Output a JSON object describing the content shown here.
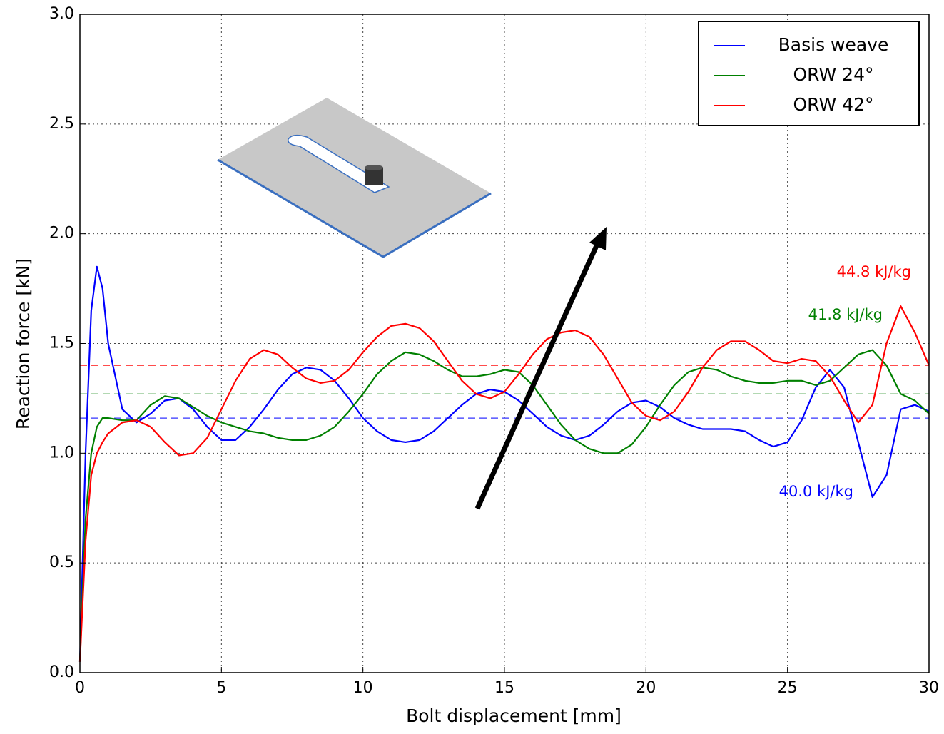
{
  "chart_data": {
    "type": "line",
    "xlabel": "Bolt displacement [mm]",
    "ylabel": "Reaction force [kN]",
    "xlim": [
      0,
      30
    ],
    "ylim": [
      0,
      3.0
    ],
    "xticks": [
      0,
      5,
      10,
      15,
      20,
      25,
      30
    ],
    "yticks": [
      {
        "value": 0,
        "label": "0.0"
      },
      0.5,
      {
        "value": 1,
        "label": "1.0"
      },
      1.5,
      {
        "value": 2,
        "label": "2.0"
      },
      2.5,
      {
        "value": 3,
        "label": "3.0"
      }
    ],
    "grid": true,
    "legend": "upper right",
    "x": [
      0,
      0.2,
      0.4,
      0.6,
      0.8,
      1.0,
      1.5,
      2.0,
      2.5,
      3.0,
      3.5,
      4.0,
      4.5,
      5.0,
      5.5,
      6.0,
      6.5,
      7.0,
      7.5,
      8.0,
      8.5,
      9.0,
      9.5,
      10.0,
      10.5,
      11.0,
      11.5,
      12.0,
      12.5,
      13.0,
      13.5,
      14.0,
      14.5,
      15.0,
      15.5,
      16.0,
      16.5,
      17.0,
      17.5,
      18.0,
      18.5,
      19.0,
      19.5,
      20.0,
      20.5,
      21.0,
      21.5,
      22.0,
      22.5,
      23.0,
      23.5,
      24.0,
      24.5,
      25.0,
      25.5,
      26.0,
      26.5,
      27.0,
      27.5,
      28.0,
      28.5,
      29.0,
      29.5,
      30.0
    ],
    "series": [
      {
        "name": "Basis weave",
        "color": "#0000ff",
        "values": [
          0.05,
          1.0,
          1.65,
          1.85,
          1.75,
          1.5,
          1.2,
          1.14,
          1.18,
          1.24,
          1.25,
          1.2,
          1.12,
          1.06,
          1.06,
          1.12,
          1.2,
          1.29,
          1.36,
          1.39,
          1.38,
          1.33,
          1.25,
          1.16,
          1.1,
          1.06,
          1.05,
          1.06,
          1.1,
          1.16,
          1.22,
          1.27,
          1.29,
          1.28,
          1.24,
          1.18,
          1.12,
          1.08,
          1.06,
          1.08,
          1.13,
          1.19,
          1.23,
          1.24,
          1.21,
          1.16,
          1.13,
          1.11,
          1.11,
          1.11,
          1.1,
          1.06,
          1.03,
          1.05,
          1.15,
          1.3,
          1.38,
          1.3,
          1.05,
          0.8,
          0.9,
          1.2,
          1.22,
          1.19
        ]
      },
      {
        "name": "ORW 24°",
        "color": "#008000",
        "values": [
          0.05,
          0.7,
          1.0,
          1.12,
          1.16,
          1.16,
          1.15,
          1.15,
          1.22,
          1.26,
          1.25,
          1.21,
          1.17,
          1.14,
          1.12,
          1.1,
          1.09,
          1.07,
          1.06,
          1.06,
          1.08,
          1.12,
          1.19,
          1.27,
          1.36,
          1.42,
          1.46,
          1.45,
          1.42,
          1.38,
          1.35,
          1.35,
          1.36,
          1.38,
          1.37,
          1.31,
          1.22,
          1.13,
          1.06,
          1.02,
          1.0,
          1.0,
          1.04,
          1.12,
          1.22,
          1.31,
          1.37,
          1.39,
          1.38,
          1.35,
          1.33,
          1.32,
          1.32,
          1.33,
          1.33,
          1.31,
          1.33,
          1.39,
          1.45,
          1.47,
          1.4,
          1.27,
          1.24,
          1.18
        ]
      },
      {
        "name": "ORW 42°",
        "color": "#ff0000",
        "values": [
          0.05,
          0.6,
          0.9,
          1.0,
          1.05,
          1.09,
          1.14,
          1.15,
          1.12,
          1.05,
          0.99,
          1.0,
          1.07,
          1.2,
          1.33,
          1.43,
          1.47,
          1.45,
          1.39,
          1.34,
          1.32,
          1.33,
          1.38,
          1.46,
          1.53,
          1.58,
          1.59,
          1.57,
          1.51,
          1.42,
          1.33,
          1.27,
          1.25,
          1.28,
          1.36,
          1.45,
          1.52,
          1.55,
          1.56,
          1.53,
          1.45,
          1.34,
          1.23,
          1.17,
          1.15,
          1.19,
          1.28,
          1.39,
          1.47,
          1.51,
          1.51,
          1.47,
          1.42,
          1.41,
          1.43,
          1.42,
          1.35,
          1.24,
          1.14,
          1.22,
          1.5,
          1.67,
          1.55,
          1.4
        ]
      }
    ],
    "reference_lines": [
      {
        "value": 1.4,
        "color": "#ff0000"
      },
      {
        "value": 1.27,
        "color": "#008000"
      },
      {
        "value": 1.16,
        "color": "#0000ff"
      }
    ],
    "annotations": [
      {
        "text": "44.8 kJ/kg",
        "color": "#ff0000"
      },
      {
        "text": "41.8 kJ/kg",
        "color": "#008000"
      },
      {
        "text": "40.0 kJ/kg",
        "color": "#0000ff"
      }
    ]
  }
}
